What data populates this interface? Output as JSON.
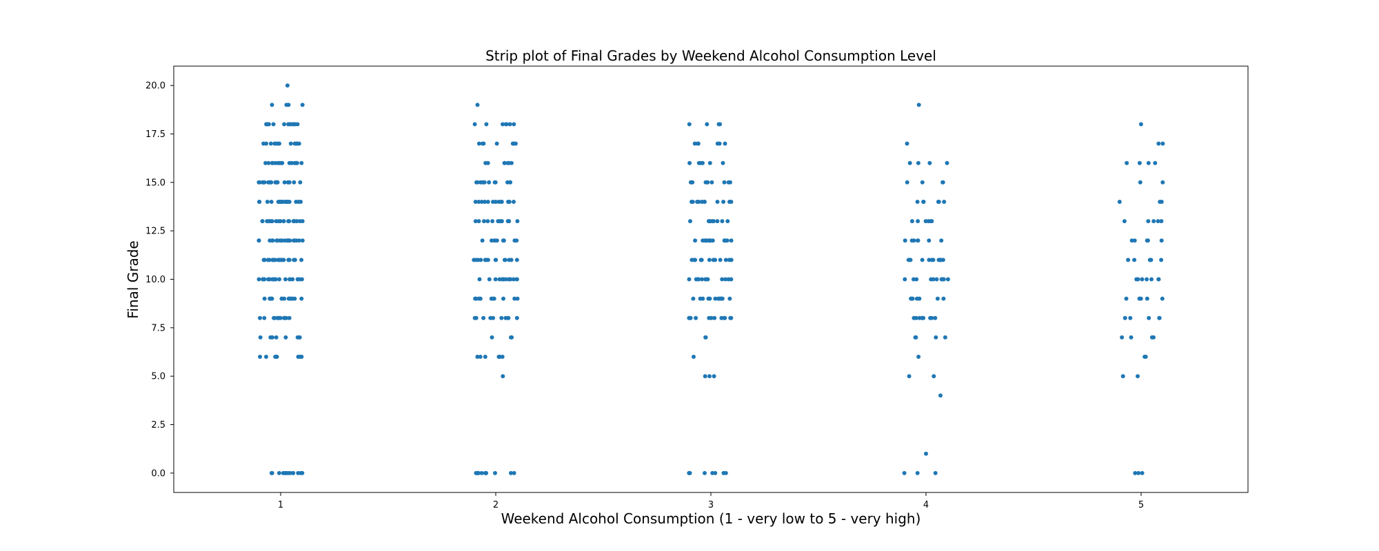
{
  "chart_data": {
    "type": "scatter",
    "subtype": "strip",
    "title": "Strip plot of Final Grades by Weekend Alcohol Consumption Level",
    "xlabel": "Weekend Alcohol Consumption (1 - very low to 5 - very high)",
    "ylabel": "Final Grade",
    "categories": [
      "1",
      "2",
      "3",
      "4",
      "5"
    ],
    "ylim": [
      -1.0,
      21.0
    ],
    "yticks": [
      "0.0",
      "2.5",
      "5.0",
      "7.5",
      "10.0",
      "12.5",
      "15.0",
      "17.5",
      "20.0"
    ],
    "grid": false,
    "legend": "none",
    "point_color": "#1f77b4",
    "series": [
      {
        "category": "1",
        "values": [
          20,
          19,
          19,
          19,
          19,
          18,
          18,
          18,
          18,
          18,
          18,
          18,
          18,
          18,
          18,
          18,
          18,
          18,
          17,
          17,
          17,
          17,
          17,
          17,
          17,
          17,
          17,
          17,
          17,
          17,
          17,
          17,
          16,
          16,
          16,
          16,
          16,
          16,
          16,
          16,
          16,
          16,
          16,
          16,
          16,
          16,
          16,
          15,
          15,
          15,
          15,
          15,
          15,
          15,
          15,
          15,
          15,
          15,
          15,
          15,
          15,
          15,
          15,
          15,
          15,
          15,
          15,
          15,
          15,
          14,
          14,
          14,
          14,
          14,
          14,
          14,
          14,
          14,
          14,
          14,
          14,
          14,
          14,
          14,
          14,
          14,
          14,
          14,
          14,
          13,
          13,
          13,
          13,
          13,
          13,
          13,
          13,
          13,
          13,
          13,
          13,
          13,
          13,
          13,
          13,
          13,
          13,
          13,
          13,
          13,
          13,
          13,
          12,
          12,
          12,
          12,
          12,
          12,
          12,
          12,
          12,
          12,
          12,
          12,
          12,
          12,
          12,
          12,
          12,
          12,
          12,
          12,
          11,
          11,
          11,
          11,
          11,
          11,
          11,
          11,
          11,
          11,
          11,
          11,
          11,
          11,
          11,
          11,
          11,
          11,
          11,
          11,
          11,
          11,
          11,
          10,
          10,
          10,
          10,
          10,
          10,
          10,
          10,
          10,
          10,
          10,
          10,
          10,
          10,
          10,
          10,
          10,
          10,
          10,
          10,
          10,
          10,
          10,
          9,
          9,
          9,
          9,
          9,
          9,
          9,
          9,
          9,
          9,
          9,
          9,
          9,
          9,
          9,
          8,
          8,
          8,
          8,
          8,
          8,
          8,
          8,
          8,
          8,
          8,
          8,
          7,
          7,
          7,
          7,
          7,
          7,
          7,
          7,
          6,
          6,
          6,
          6,
          6,
          6,
          6,
          6,
          6,
          0,
          0,
          0,
          0,
          0,
          0,
          0,
          0,
          0,
          0,
          0,
          0,
          0
        ]
      },
      {
        "category": "2",
        "values": [
          19,
          18,
          18,
          18,
          18,
          18,
          18,
          18,
          17,
          17,
          17,
          17,
          17,
          17,
          17,
          16,
          16,
          16,
          16,
          16,
          16,
          16,
          15,
          15,
          15,
          15,
          15,
          15,
          15,
          15,
          15,
          15,
          15,
          15,
          14,
          14,
          14,
          14,
          14,
          14,
          14,
          14,
          14,
          14,
          14,
          14,
          14,
          13,
          13,
          13,
          13,
          13,
          13,
          13,
          13,
          13,
          13,
          13,
          13,
          13,
          12,
          12,
          12,
          12,
          12,
          12,
          12,
          12,
          12,
          12,
          11,
          11,
          11,
          11,
          11,
          11,
          11,
          11,
          11,
          11,
          11,
          11,
          11,
          11,
          10,
          10,
          10,
          10,
          10,
          10,
          10,
          10,
          10,
          10,
          10,
          10,
          10,
          10,
          9,
          9,
          9,
          9,
          9,
          9,
          9,
          9,
          9,
          9,
          8,
          8,
          8,
          8,
          8,
          8,
          8,
          8,
          8,
          8,
          7,
          7,
          7,
          6,
          6,
          6,
          6,
          6,
          6,
          5,
          0,
          0,
          0,
          0,
          0,
          0,
          0,
          0,
          0,
          0,
          0,
          0
        ]
      },
      {
        "category": "3",
        "values": [
          18,
          18,
          18,
          18,
          17,
          17,
          17,
          17,
          17,
          17,
          16,
          16,
          16,
          16,
          16,
          16,
          15,
          15,
          15,
          15,
          15,
          15,
          15,
          15,
          15,
          15,
          14,
          14,
          14,
          14,
          14,
          14,
          14,
          14,
          14,
          14,
          14,
          13,
          13,
          13,
          13,
          13,
          13,
          13,
          13,
          13,
          12,
          12,
          12,
          12,
          12,
          12,
          12,
          12,
          12,
          12,
          12,
          12,
          12,
          12,
          12,
          12,
          11,
          11,
          11,
          11,
          11,
          11,
          11,
          11,
          11,
          11,
          11,
          11,
          11,
          11,
          10,
          10,
          10,
          10,
          10,
          10,
          10,
          10,
          10,
          10,
          10,
          10,
          10,
          9,
          9,
          9,
          9,
          9,
          9,
          9,
          9,
          9,
          9,
          9,
          9,
          9,
          8,
          8,
          8,
          8,
          8,
          8,
          8,
          8,
          8,
          8,
          8,
          8,
          7,
          7,
          6,
          5,
          5,
          5,
          0,
          0,
          0,
          0,
          0,
          0,
          0,
          0
        ]
      },
      {
        "category": "4",
        "values": [
          19,
          17,
          16,
          16,
          16,
          16,
          15,
          15,
          15,
          15,
          14,
          14,
          14,
          14,
          14,
          14,
          13,
          13,
          13,
          13,
          13,
          13,
          12,
          12,
          12,
          12,
          12,
          12,
          12,
          11,
          11,
          11,
          11,
          11,
          11,
          11,
          11,
          11,
          11,
          11,
          11,
          11,
          10,
          10,
          10,
          10,
          10,
          10,
          10,
          10,
          10,
          10,
          10,
          9,
          9,
          9,
          9,
          9,
          9,
          9,
          8,
          8,
          8,
          8,
          8,
          8,
          8,
          8,
          8,
          7,
          7,
          7,
          7,
          6,
          5,
          5,
          4,
          1,
          0,
          0,
          0
        ]
      },
      {
        "category": "5",
        "values": [
          18,
          17,
          17,
          16,
          16,
          16,
          16,
          15,
          15,
          14,
          14,
          14,
          13,
          13,
          13,
          13,
          13,
          12,
          12,
          12,
          12,
          12,
          11,
          11,
          11,
          11,
          11,
          11,
          10,
          10,
          10,
          10,
          10,
          10,
          10,
          9,
          9,
          9,
          9,
          9,
          8,
          8,
          8,
          8,
          8,
          7,
          7,
          7,
          7,
          6,
          6,
          5,
          5,
          0,
          0,
          0
        ]
      }
    ]
  }
}
